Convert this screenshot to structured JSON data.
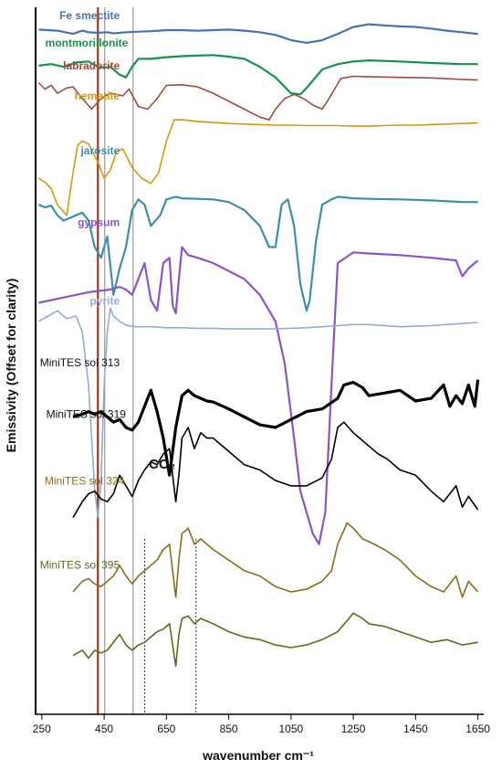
{
  "chart_data": {
    "type": "line",
    "xlabel": "wavenumber cm⁻¹",
    "ylabel": "Emissivity (Offset for clarity)",
    "xlim": [
      230,
      1660
    ],
    "x_ticks": [
      250,
      450,
      650,
      850,
      1050,
      1250,
      1450,
      1650
    ],
    "grid": false,
    "annotation": "CO₂",
    "vertical_lines": [
      {
        "x": 430,
        "color": "#a0371f"
      },
      {
        "x": 452,
        "color": "#888888"
      },
      {
        "x": 543,
        "color": "#888888"
      }
    ],
    "dotted_lines": [
      580,
      745
    ],
    "series": [
      {
        "name": "Fe smectite",
        "color": "#4a6fb5",
        "bold": true,
        "x": [
          240,
          300,
          350,
          380,
          400,
          430,
          460,
          480,
          520,
          560,
          600,
          650,
          700,
          750,
          800,
          850,
          900,
          950,
          1000,
          1050,
          1100,
          1150,
          1200,
          1250,
          1300,
          1350,
          1400,
          1450,
          1500,
          1550,
          1600,
          1650
        ],
        "y": [
          0.97,
          0.968,
          0.962,
          0.968,
          0.965,
          0.964,
          0.965,
          0.963,
          0.965,
          0.966,
          0.967,
          0.969,
          0.969,
          0.968,
          0.969,
          0.97,
          0.968,
          0.965,
          0.96,
          0.95,
          0.945,
          0.95,
          0.962,
          0.975,
          0.98,
          0.978,
          0.976,
          0.975,
          0.972,
          0.968,
          0.965,
          0.962
        ]
      },
      {
        "name": "montmorillonite",
        "color": "#17924a",
        "bold": true,
        "x": [
          240,
          280,
          320,
          360,
          400,
          430,
          450,
          470,
          500,
          520,
          540,
          560,
          600,
          650,
          700,
          750,
          800,
          850,
          900,
          950,
          1000,
          1050,
          1080,
          1100,
          1150,
          1200,
          1250,
          1300,
          1400,
          1500,
          1600,
          1650
        ],
        "y": [
          0.902,
          0.905,
          0.9,
          0.908,
          0.91,
          0.9,
          0.898,
          0.9,
          0.885,
          0.88,
          0.9,
          0.915,
          0.915,
          0.918,
          0.92,
          0.921,
          0.922,
          0.919,
          0.915,
          0.9,
          0.88,
          0.85,
          0.848,
          0.86,
          0.895,
          0.905,
          0.91,
          0.912,
          0.91,
          0.907,
          0.905,
          0.905
        ]
      },
      {
        "name": "labradorite",
        "color": "#9e4b3f",
        "bold": false,
        "x": [
          240,
          260,
          280,
          300,
          330,
          350,
          380,
          410,
          440,
          470,
          490,
          510,
          530,
          560,
          590,
          620,
          650,
          700,
          750,
          800,
          850,
          900,
          950,
          980,
          1000,
          1030,
          1060,
          1090,
          1120,
          1150,
          1170,
          1190,
          1210,
          1250,
          1300,
          1400,
          1500,
          1600,
          1650
        ],
        "y": [
          0.87,
          0.858,
          0.865,
          0.85,
          0.86,
          0.862,
          0.84,
          0.82,
          0.84,
          0.85,
          0.848,
          0.845,
          0.858,
          0.825,
          0.82,
          0.84,
          0.865,
          0.866,
          0.862,
          0.85,
          0.835,
          0.82,
          0.805,
          0.8,
          0.82,
          0.84,
          0.848,
          0.84,
          0.828,
          0.82,
          0.838,
          0.858,
          0.878,
          0.882,
          0.881,
          0.88,
          0.879,
          0.876,
          0.875
        ]
      },
      {
        "name": "hematite",
        "color": "#d39a0e",
        "bold": false,
        "x": [
          240,
          265,
          280,
          300,
          330,
          350,
          365,
          380,
          400,
          430,
          450,
          470,
          490,
          510,
          540,
          570,
          600,
          625,
          650,
          675,
          700,
          750,
          800,
          850,
          900,
          950,
          1000,
          1050,
          1100,
          1150,
          1200,
          1250,
          1300,
          1350,
          1400,
          1450,
          1500,
          1550,
          1600,
          1650
        ],
        "y": [
          0.69,
          0.68,
          0.67,
          0.64,
          0.62,
          0.7,
          0.752,
          0.76,
          0.755,
          0.72,
          0.69,
          0.705,
          0.74,
          0.745,
          0.71,
          0.69,
          0.68,
          0.7,
          0.76,
          0.8,
          0.8,
          0.797,
          0.795,
          0.793,
          0.792,
          0.791,
          0.79,
          0.79,
          0.789,
          0.789,
          0.789,
          0.788,
          0.788,
          0.789,
          0.79,
          0.79,
          0.791,
          0.792,
          0.793,
          0.794
        ]
      },
      {
        "name": "jarosite",
        "color": "#3b8fa8",
        "bold": true,
        "x": [
          240,
          260,
          280,
          300,
          320,
          340,
          360,
          380,
          400,
          420,
          440,
          460,
          480,
          500,
          520,
          540,
          560,
          580,
          600,
          630,
          650,
          680,
          700,
          750,
          800,
          850,
          900,
          950,
          980,
          1000,
          1020,
          1040,
          1060,
          1080,
          1100,
          1110,
          1130,
          1150,
          1180,
          1200,
          1250,
          1300,
          1400,
          1500,
          1600,
          1650
        ],
        "y": [
          0.64,
          0.635,
          0.638,
          0.62,
          0.61,
          0.615,
          0.62,
          0.625,
          0.61,
          0.56,
          0.54,
          0.58,
          0.47,
          0.52,
          0.56,
          0.63,
          0.65,
          0.64,
          0.6,
          0.62,
          0.65,
          0.655,
          0.652,
          0.651,
          0.65,
          0.645,
          0.63,
          0.6,
          0.56,
          0.56,
          0.64,
          0.65,
          0.6,
          0.49,
          0.44,
          0.46,
          0.57,
          0.64,
          0.65,
          0.655,
          0.652,
          0.651,
          0.65,
          0.648,
          0.645,
          0.645
        ]
      },
      {
        "name": "gypsum",
        "color": "#8a54c8",
        "bold": true,
        "x": [
          240,
          280,
          320,
          360,
          400,
          440,
          470,
          500,
          520,
          540,
          560,
          580,
          600,
          620,
          640,
          660,
          670,
          680,
          690,
          700,
          720,
          750,
          800,
          850,
          900,
          950,
          1000,
          1030,
          1060,
          1080,
          1100,
          1120,
          1140,
          1160,
          1180,
          1200,
          1250,
          1300,
          1400,
          1500,
          1580,
          1600,
          1620,
          1650
        ],
        "y": [
          0.455,
          0.46,
          0.465,
          0.47,
          0.475,
          0.478,
          0.48,
          0.485,
          0.48,
          0.47,
          0.5,
          0.53,
          0.46,
          0.44,
          0.53,
          0.54,
          0.45,
          0.435,
          0.5,
          0.56,
          0.545,
          0.54,
          0.53,
          0.515,
          0.5,
          0.47,
          0.42,
          0.34,
          0.2,
          0.1,
          0.06,
          0.02,
          0.0,
          0.06,
          0.3,
          0.53,
          0.55,
          0.548,
          0.545,
          0.54,
          0.535,
          0.505,
          0.52,
          0.535
        ]
      },
      {
        "name": "pyrite",
        "color": "#94a9d6",
        "bold": false,
        "x": [
          240,
          270,
          300,
          330,
          360,
          380,
          400,
          410,
          420,
          430,
          440,
          450,
          460,
          470,
          480,
          500,
          520,
          550,
          600,
          650,
          700,
          750,
          800,
          850,
          900,
          950,
          1000,
          1050,
          1100,
          1150,
          1200,
          1250,
          1300,
          1350,
          1400,
          1450,
          1500,
          1550,
          1600,
          1650
        ],
        "y": [
          0.42,
          0.43,
          0.44,
          0.425,
          0.43,
          0.4,
          0.3,
          0.2,
          0.1,
          0.05,
          0.12,
          0.3,
          0.4,
          0.445,
          0.43,
          0.42,
          0.413,
          0.41,
          0.41,
          0.408,
          0.408,
          0.407,
          0.407,
          0.406,
          0.406,
          0.406,
          0.406,
          0.407,
          0.408,
          0.41,
          0.412,
          0.414,
          0.414,
          0.412,
          0.41,
          0.411,
          0.412,
          0.414,
          0.416,
          0.418
        ]
      },
      {
        "name": "MiniTES sol 313",
        "color": "#000000",
        "bold": false,
        "heavy": true,
        "x": [
          350,
          380,
          400,
          420,
          440,
          460,
          480,
          500,
          520,
          540,
          560,
          580,
          600,
          620,
          640,
          660,
          680,
          700,
          720,
          740,
          760,
          780,
          800,
          850,
          900,
          950,
          1000,
          1050,
          1100,
          1150,
          1200,
          1220,
          1250,
          1280,
          1300,
          1350,
          1400,
          1450,
          1500,
          1540,
          1560,
          1580,
          1600,
          1620,
          1640,
          1650
        ],
        "y": [
          0.24,
          0.245,
          0.25,
          0.245,
          0.25,
          0.24,
          0.23,
          0.235,
          0.22,
          0.215,
          0.23,
          0.26,
          0.29,
          0.25,
          0.2,
          0.13,
          0.22,
          0.28,
          0.29,
          0.28,
          0.275,
          0.27,
          0.268,
          0.255,
          0.24,
          0.225,
          0.22,
          0.235,
          0.25,
          0.255,
          0.275,
          0.3,
          0.305,
          0.295,
          0.28,
          0.285,
          0.29,
          0.27,
          0.275,
          0.3,
          0.26,
          0.28,
          0.265,
          0.3,
          0.26,
          0.31
        ]
      },
      {
        "name": "MiniTES sol 319",
        "color": "#000000",
        "bold": false,
        "heavy": false,
        "x": [
          350,
          380,
          400,
          420,
          440,
          460,
          480,
          500,
          520,
          540,
          560,
          580,
          600,
          620,
          640,
          660,
          680,
          690,
          700,
          720,
          740,
          760,
          780,
          800,
          850,
          900,
          950,
          1000,
          1050,
          1100,
          1150,
          1180,
          1200,
          1220,
          1250,
          1280,
          1300,
          1330,
          1360,
          1400,
          1450,
          1500,
          1540,
          1580,
          1600,
          1620,
          1650
        ],
        "y": [
          0.05,
          0.08,
          0.095,
          0.1,
          0.085,
          0.08,
          0.095,
          0.13,
          0.11,
          0.09,
          0.12,
          0.14,
          0.155,
          0.15,
          0.17,
          0.18,
          0.08,
          0.13,
          0.2,
          0.22,
          0.18,
          0.21,
          0.2,
          0.2,
          0.175,
          0.15,
          0.14,
          0.12,
          0.11,
          0.11,
          0.125,
          0.16,
          0.22,
          0.23,
          0.21,
          0.195,
          0.185,
          0.17,
          0.16,
          0.14,
          0.13,
          0.1,
          0.08,
          0.11,
          0.07,
          0.09,
          0.065
        ]
      },
      {
        "name": "MiniTES sol 324",
        "color": "#8b6b1e",
        "bold": false,
        "heavy": false,
        "x": [
          350,
          380,
          400,
          420,
          440,
          460,
          480,
          500,
          520,
          540,
          560,
          580,
          600,
          620,
          640,
          660,
          680,
          690,
          700,
          720,
          740,
          760,
          780,
          800,
          850,
          900,
          950,
          1000,
          1050,
          1100,
          1150,
          1180,
          1200,
          1230,
          1250,
          1280,
          1300,
          1350,
          1400,
          1450,
          1500,
          1540,
          1580,
          1600,
          1620,
          1650
        ],
        "y": [
          -0.09,
          -0.07,
          -0.065,
          -0.075,
          -0.08,
          -0.07,
          -0.06,
          -0.04,
          -0.06,
          -0.075,
          -0.06,
          -0.05,
          -0.04,
          -0.03,
          -0.01,
          0.0,
          -0.1,
          -0.03,
          0.02,
          0.03,
          0.0,
          0.01,
          0.0,
          -0.01,
          -0.03,
          -0.05,
          -0.06,
          -0.08,
          -0.09,
          -0.085,
          -0.07,
          -0.05,
          0.0,
          0.04,
          0.03,
          0.01,
          0.005,
          -0.01,
          -0.03,
          -0.06,
          -0.08,
          -0.09,
          -0.06,
          -0.1,
          -0.07,
          -0.09
        ]
      },
      {
        "name": "MiniTES sol 395",
        "color": "#5c6a1f",
        "bold": false,
        "heavy": false,
        "x": [
          350,
          380,
          400,
          420,
          440,
          460,
          480,
          500,
          520,
          540,
          560,
          580,
          600,
          620,
          640,
          660,
          680,
          690,
          700,
          720,
          740,
          760,
          780,
          800,
          850,
          900,
          950,
          1000,
          1050,
          1100,
          1150,
          1200,
          1250,
          1280,
          1300,
          1350,
          1400,
          1450,
          1500,
          1550,
          1600,
          1650
        ],
        "y": [
          -0.21,
          -0.2,
          -0.215,
          -0.2,
          -0.205,
          -0.2,
          -0.185,
          -0.17,
          -0.19,
          -0.2,
          -0.19,
          -0.185,
          -0.175,
          -0.165,
          -0.16,
          -0.15,
          -0.23,
          -0.17,
          -0.14,
          -0.135,
          -0.15,
          -0.14,
          -0.145,
          -0.15,
          -0.165,
          -0.175,
          -0.18,
          -0.19,
          -0.195,
          -0.19,
          -0.18,
          -0.165,
          -0.13,
          -0.14,
          -0.15,
          -0.155,
          -0.165,
          -0.175,
          -0.185,
          -0.18,
          -0.19,
          -0.185
        ]
      }
    ],
    "labels": [
      {
        "series": "Fe smectite",
        "text": "Fe smectite"
      },
      {
        "series": "montmorillonite",
        "text": "montmorillonite"
      },
      {
        "series": "labradorite",
        "text": "labradorite"
      },
      {
        "series": "hematite",
        "text": "hematite"
      },
      {
        "series": "jarosite",
        "text": "jarosite"
      },
      {
        "series": "gypsum",
        "text": "gypsum"
      },
      {
        "series": "pyrite",
        "text": "pyrite"
      },
      {
        "series": "MiniTES sol 313",
        "text": "MiniTES sol 313"
      },
      {
        "series": "MiniTES sol 319",
        "text": "MiniTES sol 319"
      },
      {
        "series": "MiniTES sol 324",
        "text": "MiniTES sol 324"
      },
      {
        "series": "MiniTES sol 395",
        "text": "MiniTES sol 395"
      }
    ]
  }
}
